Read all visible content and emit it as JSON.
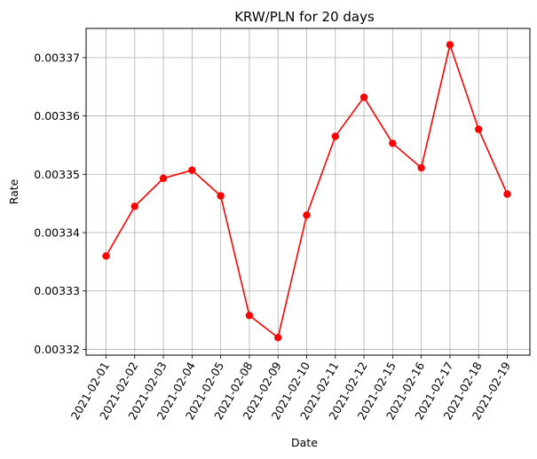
{
  "chart_data": {
    "type": "line",
    "title": "KRW/PLN for 20 days",
    "xlabel": "Date",
    "ylabel": "Rate",
    "categories": [
      "2021-02-01",
      "2021-02-02",
      "2021-02-03",
      "2021-02-04",
      "2021-02-05",
      "2021-02-08",
      "2021-02-09",
      "2021-02-10",
      "2021-02-11",
      "2021-02-12",
      "2021-02-15",
      "2021-02-16",
      "2021-02-17",
      "2021-02-18",
      "2021-02-19"
    ],
    "series": [
      {
        "color": "#ff0000",
        "values": [
          0.003336,
          0.0033445,
          0.0033493,
          0.0033507,
          0.0033463,
          0.0033258,
          0.003322,
          0.003343,
          0.0033565,
          0.0033632,
          0.0033553,
          0.0033511,
          0.0033722,
          0.0033577,
          0.0033466
        ]
      }
    ],
    "yticks": [
      "0.00332",
      "0.00333",
      "0.00334",
      "0.00335",
      "0.00336",
      "0.00337"
    ],
    "ylim": [
      0.003319,
      0.003375
    ],
    "grid": true,
    "legend": "none"
  }
}
